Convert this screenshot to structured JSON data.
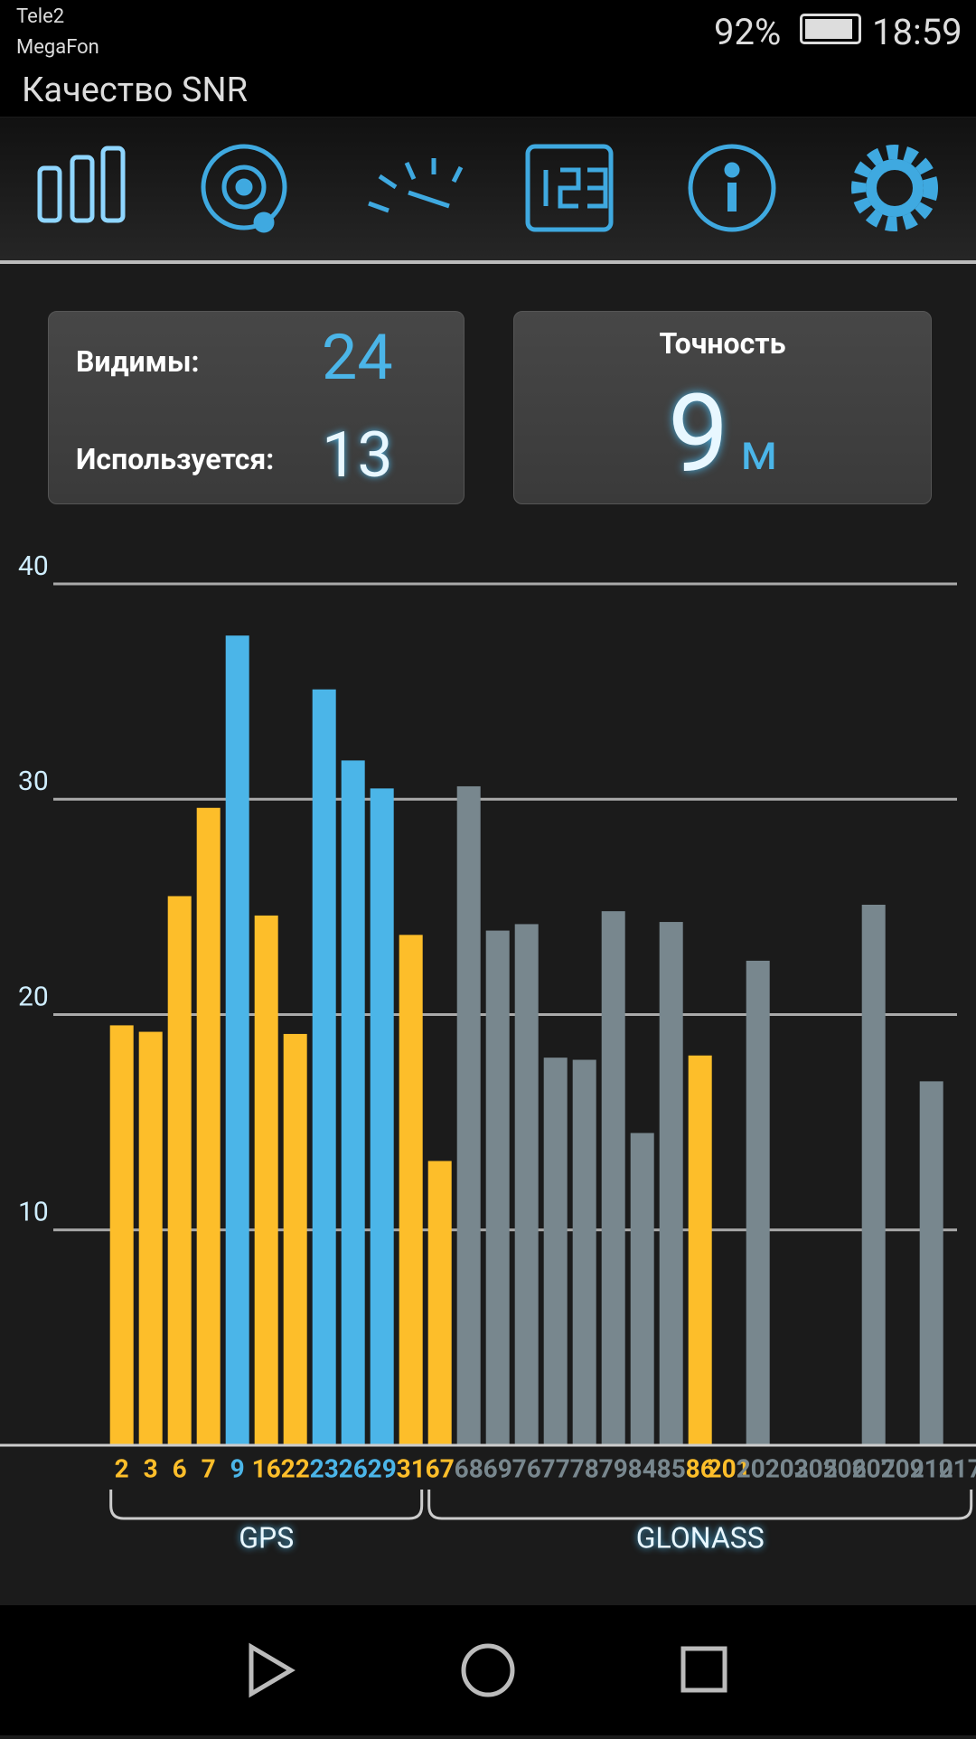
{
  "status_bar": {
    "carrier_1": "Tele2",
    "carrier_2": "MegaFon",
    "battery": "92%",
    "time": "18:59"
  },
  "app_bar": {
    "title": "Качество SNR"
  },
  "stats": {
    "visible_label": "Видимы:",
    "visible_value": "24",
    "used_label": "Используется:",
    "used_value": "13",
    "accuracy_label": "Точность",
    "accuracy_value": "9",
    "accuracy_unit": "м"
  },
  "chart_data": {
    "type": "bar",
    "categories": [
      "2",
      "3",
      "6",
      "7",
      "9",
      "16",
      "22",
      "23",
      "26",
      "29",
      "31",
      "67",
      "68",
      "69",
      "76",
      "77",
      "78",
      "79",
      "84",
      "85",
      "86",
      "201",
      "202",
      "203",
      "205",
      "206",
      "207",
      "209",
      "210",
      "217"
    ],
    "values": [
      19.5,
      19.2,
      25.5,
      29.6,
      37.6,
      24.6,
      19.1,
      35.1,
      31.8,
      30.5,
      23.7,
      13.2,
      30.6,
      23.9,
      24.2,
      18.0,
      17.9,
      24.8,
      14.5,
      24.3,
      18.1,
      0,
      22.5,
      0,
      0,
      0,
      25.1,
      0,
      16.9,
      0
    ],
    "colors": [
      "#fdbe2a",
      "#fdbe2a",
      "#fdbe2a",
      "#fdbe2a",
      "#4bb5e8",
      "#fdbe2a",
      "#fdbe2a",
      "#4bb5e8",
      "#4bb5e8",
      "#4bb5e8",
      "#fdbe2a",
      "#fdbe2a",
      "#78878e",
      "#78878e",
      "#78878e",
      "#78878e",
      "#78878e",
      "#78878e",
      "#78878e",
      "#78878e",
      "#fdbe2a",
      "#fdbe2a",
      "#78878e",
      "#78878e",
      "#78878e",
      "#78878e",
      "#78878e",
      "#78878e",
      "#78878e",
      "#78878e"
    ],
    "ylim": [
      0,
      40
    ],
    "yticks": [
      10,
      20,
      30,
      40
    ],
    "grid": true,
    "groups": [
      {
        "label": "GPS",
        "size": 11
      },
      {
        "label": "GLONASS",
        "size": 19
      }
    ]
  }
}
